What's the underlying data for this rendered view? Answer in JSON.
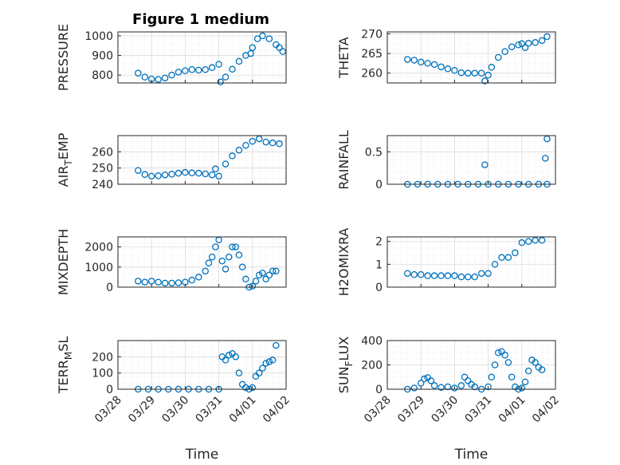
{
  "figure_title": "Figure 1 medium",
  "marker_color": "#0072bd",
  "x_axis_label": "Time",
  "x_tick_labels": [
    "03/28",
    "03/29",
    "03/30",
    "03/31",
    "04/01",
    "04/02"
  ],
  "chart_data": [
    {
      "type": "scatter",
      "title": "Figure 1 medium",
      "ylabel": "PRESSURE",
      "xlabel": "",
      "grid": true,
      "xlim": [
        "03/28",
        "04/02"
      ],
      "ylim": [
        760,
        1020
      ],
      "yticks": [
        800,
        900,
        1000
      ],
      "x_ticks": [
        "03/28",
        "03/29",
        "03/30",
        "03/31",
        "04/01",
        "04/02"
      ],
      "series": [
        {
          "points": [
            [
              0.6,
              810
            ],
            [
              0.8,
              790
            ],
            [
              1.0,
              780
            ],
            [
              1.2,
              778
            ],
            [
              1.4,
              785
            ],
            [
              1.6,
              800
            ],
            [
              1.8,
              815
            ],
            [
              2.0,
              822
            ],
            [
              2.2,
              828
            ],
            [
              2.4,
              825
            ],
            [
              2.6,
              828
            ],
            [
              2.8,
              838
            ],
            [
              3.0,
              855
            ],
            [
              3.05,
              765
            ],
            [
              3.2,
              790
            ],
            [
              3.4,
              830
            ],
            [
              3.6,
              870
            ],
            [
              3.8,
              900
            ],
            [
              3.95,
              910
            ],
            [
              4.0,
              940
            ],
            [
              4.15,
              985
            ],
            [
              4.3,
              1000
            ],
            [
              4.5,
              985
            ],
            [
              4.7,
              955
            ],
            [
              4.8,
              940
            ],
            [
              4.9,
              920
            ]
          ]
        }
      ]
    },
    {
      "type": "scatter",
      "ylabel": "THETA",
      "xlabel": "",
      "grid": true,
      "xlim": [
        "03/28",
        "04/02"
      ],
      "ylim": [
        257.5,
        270.5
      ],
      "yticks": [
        260,
        265,
        270
      ],
      "x_ticks": [
        "03/28",
        "03/29",
        "03/30",
        "03/31",
        "04/01",
        "04/02"
      ],
      "series": [
        {
          "points": [
            [
              0.6,
              263.5
            ],
            [
              0.8,
              263.3
            ],
            [
              1.0,
              262.8
            ],
            [
              1.2,
              262.5
            ],
            [
              1.4,
              262.2
            ],
            [
              1.6,
              261.6
            ],
            [
              1.8,
              261.1
            ],
            [
              2.0,
              260.7
            ],
            [
              2.2,
              260.1
            ],
            [
              2.4,
              260.0
            ],
            [
              2.6,
              260.0
            ],
            [
              2.8,
              260.0
            ],
            [
              2.9,
              258.0
            ],
            [
              3.0,
              259.5
            ],
            [
              3.1,
              261.5
            ],
            [
              3.3,
              264.0
            ],
            [
              3.5,
              265.5
            ],
            [
              3.7,
              266.7
            ],
            [
              3.9,
              267.2
            ],
            [
              4.0,
              267.5
            ],
            [
              4.1,
              266.5
            ],
            [
              4.2,
              267.6
            ],
            [
              4.4,
              267.8
            ],
            [
              4.6,
              268.3
            ],
            [
              4.75,
              269.3
            ]
          ]
        }
      ]
    },
    {
      "type": "scatter",
      "ylabel": "AIR_TEMP",
      "xlabel": "",
      "grid": true,
      "xlim": [
        "03/28",
        "04/02"
      ],
      "ylim": [
        240,
        270
      ],
      "yticks": [
        240,
        250,
        260
      ],
      "x_ticks": [
        "03/28",
        "03/29",
        "03/30",
        "03/31",
        "04/01",
        "04/02"
      ],
      "series": [
        {
          "points": [
            [
              0.6,
              248.5
            ],
            [
              0.8,
              246.0
            ],
            [
              1.0,
              245.0
            ],
            [
              1.2,
              245.2
            ],
            [
              1.4,
              245.8
            ],
            [
              1.6,
              246.2
            ],
            [
              1.8,
              246.8
            ],
            [
              2.0,
              247.3
            ],
            [
              2.2,
              247.0
            ],
            [
              2.4,
              246.8
            ],
            [
              2.6,
              246.4
            ],
            [
              2.8,
              245.8
            ],
            [
              2.9,
              249.5
            ],
            [
              3.0,
              245.0
            ],
            [
              3.2,
              252.5
            ],
            [
              3.4,
              257.5
            ],
            [
              3.6,
              261.0
            ],
            [
              3.8,
              264.0
            ],
            [
              4.0,
              266.5
            ],
            [
              4.2,
              268.0
            ],
            [
              4.4,
              266.0
            ],
            [
              4.6,
              265.5
            ],
            [
              4.8,
              265.0
            ]
          ]
        }
      ]
    },
    {
      "type": "scatter",
      "ylabel": "RAINFALL",
      "xlabel": "",
      "grid": true,
      "xlim": [
        "03/28",
        "04/02"
      ],
      "ylim": [
        0,
        0.75
      ],
      "yticks": [
        0,
        0.5
      ],
      "x_ticks": [
        "03/28",
        "03/29",
        "03/30",
        "03/31",
        "04/01",
        "04/02"
      ],
      "series": [
        {
          "points": [
            [
              0.6,
              0
            ],
            [
              0.9,
              0
            ],
            [
              1.2,
              0
            ],
            [
              1.5,
              0
            ],
            [
              1.8,
              0
            ],
            [
              2.1,
              0
            ],
            [
              2.4,
              0
            ],
            [
              2.7,
              0
            ],
            [
              3.0,
              0
            ],
            [
              3.3,
              0
            ],
            [
              3.6,
              0
            ],
            [
              3.9,
              0
            ],
            [
              4.2,
              0
            ],
            [
              4.5,
              0
            ],
            [
              4.75,
              0
            ],
            [
              2.9,
              0.3
            ],
            [
              4.7,
              0.4
            ],
            [
              4.75,
              0.7
            ]
          ]
        }
      ]
    },
    {
      "type": "scatter",
      "ylabel": "MIXDEPTH",
      "xlabel": "",
      "grid": true,
      "xlim": [
        "03/28",
        "04/02"
      ],
      "ylim": [
        0,
        2500
      ],
      "yticks": [
        0,
        1000,
        2000
      ],
      "x_ticks": [
        "03/28",
        "03/29",
        "03/30",
        "03/31",
        "04/01",
        "04/02"
      ],
      "series": [
        {
          "points": [
            [
              0.6,
              300
            ],
            [
              0.8,
              250
            ],
            [
              1.0,
              300
            ],
            [
              1.2,
              250
            ],
            [
              1.4,
              200
            ],
            [
              1.6,
              200
            ],
            [
              1.8,
              220
            ],
            [
              2.0,
              250
            ],
            [
              2.2,
              350
            ],
            [
              2.4,
              500
            ],
            [
              2.6,
              800
            ],
            [
              2.7,
              1200
            ],
            [
              2.8,
              1500
            ],
            [
              2.9,
              2000
            ],
            [
              3.0,
              2350
            ],
            [
              3.1,
              1300
            ],
            [
              3.2,
              900
            ],
            [
              3.3,
              1500
            ],
            [
              3.4,
              2000
            ],
            [
              3.5,
              2000
            ],
            [
              3.6,
              1600
            ],
            [
              3.7,
              1000
            ],
            [
              3.8,
              400
            ],
            [
              3.9,
              0
            ],
            [
              4.0,
              50
            ],
            [
              4.1,
              300
            ],
            [
              4.2,
              600
            ],
            [
              4.3,
              700
            ],
            [
              4.4,
              400
            ],
            [
              4.5,
              600
            ],
            [
              4.6,
              800
            ],
            [
              4.7,
              800
            ]
          ]
        }
      ]
    },
    {
      "type": "scatter",
      "ylabel": "H2OMIXRA",
      "xlabel": "",
      "grid": true,
      "xlim": [
        "03/28",
        "04/02"
      ],
      "ylim": [
        0,
        2.2
      ],
      "yticks": [
        0,
        1,
        2
      ],
      "x_ticks": [
        "03/28",
        "03/29",
        "03/30",
        "03/31",
        "04/01",
        "04/02"
      ],
      "series": [
        {
          "points": [
            [
              0.6,
              0.6
            ],
            [
              0.8,
              0.55
            ],
            [
              1.0,
              0.55
            ],
            [
              1.2,
              0.5
            ],
            [
              1.4,
              0.5
            ],
            [
              1.6,
              0.5
            ],
            [
              1.8,
              0.5
            ],
            [
              2.0,
              0.5
            ],
            [
              2.2,
              0.45
            ],
            [
              2.4,
              0.45
            ],
            [
              2.6,
              0.45
            ],
            [
              2.8,
              0.6
            ],
            [
              3.0,
              0.6
            ],
            [
              3.2,
              1.0
            ],
            [
              3.4,
              1.3
            ],
            [
              3.6,
              1.3
            ],
            [
              3.8,
              1.5
            ],
            [
              4.0,
              1.95
            ],
            [
              4.2,
              2.0
            ],
            [
              4.4,
              2.05
            ],
            [
              4.6,
              2.05
            ]
          ]
        }
      ]
    },
    {
      "type": "scatter",
      "ylabel": "TERR_MSL",
      "xlabel": "Time",
      "grid": true,
      "xlim": [
        "03/28",
        "04/02"
      ],
      "ylim": [
        0,
        300
      ],
      "yticks": [
        0,
        100,
        200
      ],
      "x_ticks": [
        "03/28",
        "03/29",
        "03/30",
        "03/31",
        "04/01",
        "04/02"
      ],
      "series": [
        {
          "points": [
            [
              0.6,
              0
            ],
            [
              0.9,
              0
            ],
            [
              1.2,
              0
            ],
            [
              1.5,
              0
            ],
            [
              1.8,
              0
            ],
            [
              2.1,
              0
            ],
            [
              2.4,
              0
            ],
            [
              2.7,
              0
            ],
            [
              3.0,
              0
            ],
            [
              3.1,
              200
            ],
            [
              3.2,
              180
            ],
            [
              3.3,
              210
            ],
            [
              3.4,
              220
            ],
            [
              3.5,
              200
            ],
            [
              3.6,
              100
            ],
            [
              3.7,
              30
            ],
            [
              3.8,
              10
            ],
            [
              3.9,
              0
            ],
            [
              4.0,
              10
            ],
            [
              4.1,
              80
            ],
            [
              4.2,
              100
            ],
            [
              4.3,
              130
            ],
            [
              4.4,
              160
            ],
            [
              4.5,
              170
            ],
            [
              4.6,
              180
            ],
            [
              4.7,
              270
            ]
          ]
        }
      ]
    },
    {
      "type": "scatter",
      "ylabel": "SUN_FLUX",
      "xlabel": "Time",
      "grid": true,
      "xlim": [
        "03/28",
        "04/02"
      ],
      "ylim": [
        0,
        400
      ],
      "yticks": [
        0,
        200,
        400
      ],
      "x_ticks": [
        "03/28",
        "03/29",
        "03/30",
        "03/31",
        "04/01",
        "04/02"
      ],
      "series": [
        {
          "points": [
            [
              0.6,
              0
            ],
            [
              0.8,
              10
            ],
            [
              1.0,
              50
            ],
            [
              1.1,
              85
            ],
            [
              1.2,
              95
            ],
            [
              1.3,
              70
            ],
            [
              1.4,
              30
            ],
            [
              1.6,
              15
            ],
            [
              1.8,
              20
            ],
            [
              2.0,
              10
            ],
            [
              2.2,
              30
            ],
            [
              2.3,
              100
            ],
            [
              2.4,
              70
            ],
            [
              2.5,
              40
            ],
            [
              2.6,
              20
            ],
            [
              2.8,
              0
            ],
            [
              3.0,
              20
            ],
            [
              3.1,
              100
            ],
            [
              3.2,
              200
            ],
            [
              3.3,
              300
            ],
            [
              3.4,
              310
            ],
            [
              3.5,
              280
            ],
            [
              3.6,
              220
            ],
            [
              3.7,
              100
            ],
            [
              3.8,
              20
            ],
            [
              3.9,
              0
            ],
            [
              4.0,
              10
            ],
            [
              4.1,
              60
            ],
            [
              4.2,
              150
            ],
            [
              4.3,
              240
            ],
            [
              4.4,
              220
            ],
            [
              4.5,
              180
            ],
            [
              4.6,
              160
            ]
          ]
        }
      ]
    }
  ]
}
